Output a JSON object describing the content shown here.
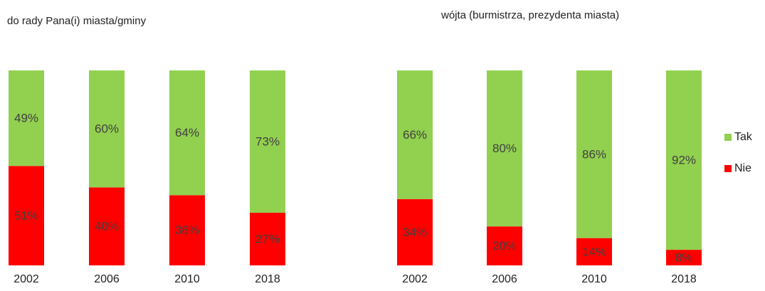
{
  "chart_data": [
    {
      "type": "bar",
      "stacked": true,
      "title": "do rady Pana(i) miasta/gminy",
      "categories": [
        "2002",
        "2006",
        "2010",
        "2018"
      ],
      "series": [
        {
          "name": "Nie",
          "color": "#ff0000",
          "values": [
            51,
            40,
            36,
            27
          ],
          "value_labels": [
            "51%",
            "40%",
            "36%",
            "27%"
          ]
        },
        {
          "name": "Tak",
          "color": "#92d050",
          "values": [
            49,
            60,
            64,
            73
          ],
          "value_labels": [
            "49%",
            "60%",
            "64%",
            "73%"
          ]
        }
      ]
    },
    {
      "type": "bar",
      "stacked": true,
      "title": "wójta (burmistrza, prezydenta miasta)",
      "categories": [
        "2002",
        "2006",
        "2010",
        "2018"
      ],
      "series": [
        {
          "name": "Nie",
          "color": "#ff0000",
          "values": [
            34,
            20,
            14,
            8
          ],
          "value_labels": [
            "34%",
            "20%",
            "14%",
            "8%"
          ]
        },
        {
          "name": "Tak",
          "color": "#92d050",
          "values": [
            66,
            80,
            86,
            92
          ],
          "value_labels": [
            "66%",
            "80%",
            "86%",
            "92%"
          ]
        }
      ],
      "legend": "right"
    }
  ]
}
